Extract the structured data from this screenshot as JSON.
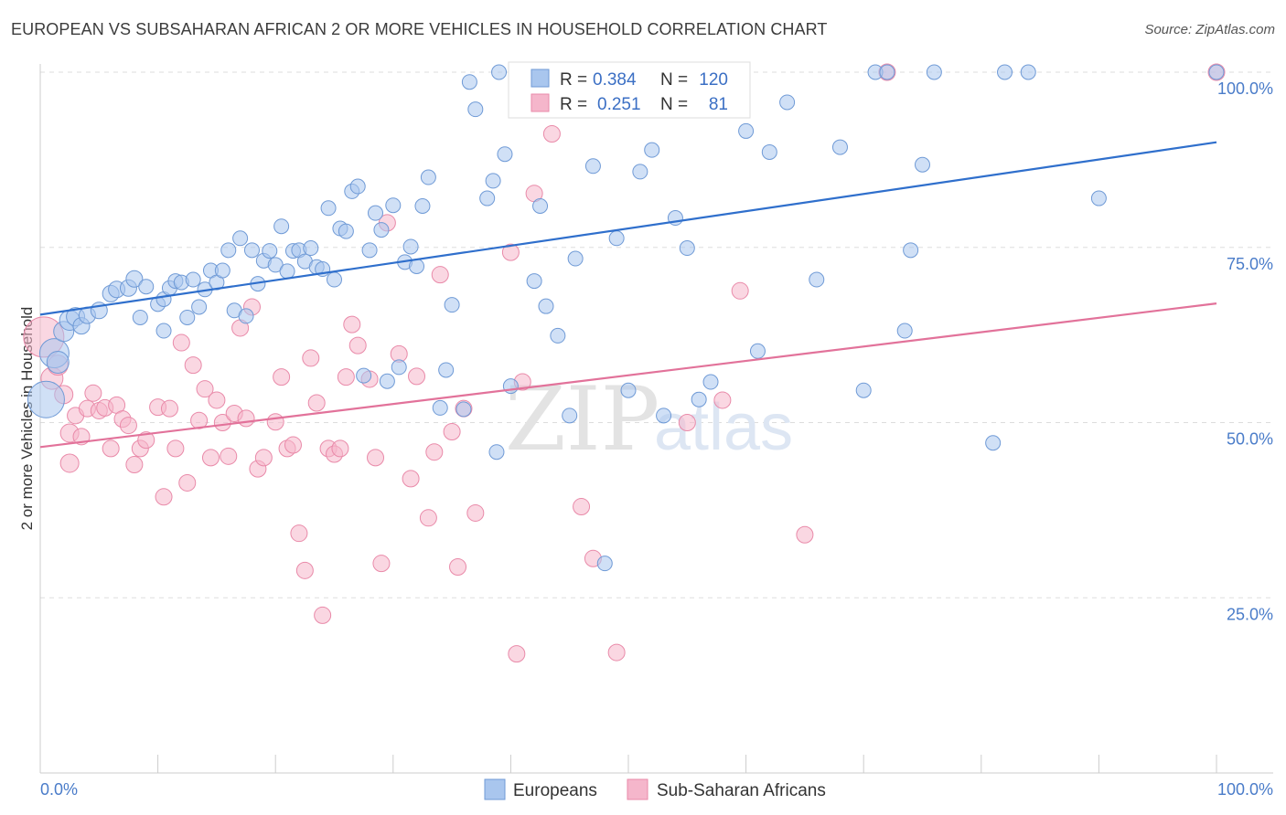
{
  "header": {
    "title": "EUROPEAN VS SUBSAHARAN AFRICAN 2 OR MORE VEHICLES IN HOUSEHOLD CORRELATION CHART",
    "source": "Source: ZipAtlas.com"
  },
  "watermark": {
    "zip": "ZIP",
    "atlas": "atlas"
  },
  "colors": {
    "blue_fill": "#a9c6ee",
    "blue_stroke": "#6f9ad6",
    "blue_line": "#2f6fcc",
    "pink_fill": "#f5b6cb",
    "pink_stroke": "#e98aa9",
    "pink_line": "#e2729a",
    "grid": "#dddddd",
    "tick_text": "#4a7cc9"
  },
  "stats": {
    "r_label": "R =",
    "n_label": "N =",
    "europeans": {
      "r": "0.384",
      "n": "120"
    },
    "subsaharan": {
      "r": "0.251",
      "n": "81"
    }
  },
  "legend": {
    "europeans": "Europeans",
    "subsaharan": "Sub-Saharan Africans"
  },
  "chart_data": {
    "type": "scatter",
    "ylabel": "2 or more Vehicles in Household",
    "x_tick_labels": [
      "0.0%",
      "100.0%"
    ],
    "y_tick_labels": [
      "25.0%",
      "50.0%",
      "75.0%",
      "100.0%"
    ],
    "y_ticks": [
      25,
      50,
      75,
      100
    ],
    "xlim": [
      0,
      100
    ],
    "ylim": [
      0,
      100
    ],
    "grid": true,
    "legend_position": "bottom-center",
    "series": [
      {
        "name": "Europeans",
        "trend": {
          "x": [
            0,
            100
          ],
          "y": [
            65.4,
            90.0
          ]
        },
        "points": [
          [
            0.5,
            53.3,
            20
          ],
          [
            1.2,
            59.9,
            16
          ],
          [
            1.5,
            58.6,
            12
          ],
          [
            2.0,
            63.0,
            11
          ],
          [
            2.5,
            64.6,
            11
          ],
          [
            3.0,
            65.1,
            10
          ],
          [
            3.5,
            63.8,
            9
          ],
          [
            4.0,
            65.3,
            9
          ],
          [
            5.0,
            66.0,
            9
          ],
          [
            6.0,
            68.4,
            9
          ],
          [
            6.5,
            69.0,
            9
          ],
          [
            7.5,
            69.2,
            9
          ],
          [
            8.0,
            70.5,
            9
          ],
          [
            8.5,
            65.0,
            8
          ],
          [
            9.0,
            69.4,
            8
          ],
          [
            10.0,
            66.9,
            8
          ],
          [
            10.5,
            63.1,
            8
          ],
          [
            10.5,
            67.6,
            8
          ],
          [
            11.0,
            69.2,
            8
          ],
          [
            11.5,
            70.2,
            8
          ],
          [
            12.0,
            70.0,
            8
          ],
          [
            12.5,
            65.0,
            8
          ],
          [
            13.0,
            70.4,
            8
          ],
          [
            13.5,
            66.5,
            8
          ],
          [
            14.0,
            69.0,
            8
          ],
          [
            14.5,
            71.7,
            8
          ],
          [
            15.0,
            70.0,
            8
          ],
          [
            15.5,
            71.7,
            8
          ],
          [
            16.0,
            74.6,
            8
          ],
          [
            16.5,
            66.0,
            8
          ],
          [
            17.0,
            76.3,
            8
          ],
          [
            17.5,
            65.2,
            8
          ],
          [
            18.0,
            74.6,
            8
          ],
          [
            18.5,
            69.8,
            8
          ],
          [
            19.0,
            73.1,
            8
          ],
          [
            19.5,
            74.5,
            8
          ],
          [
            20.0,
            72.5,
            8
          ],
          [
            20.5,
            78.0,
            8
          ],
          [
            21.0,
            71.6,
            8
          ],
          [
            21.5,
            74.5,
            8
          ],
          [
            22.0,
            74.6,
            8
          ],
          [
            22.5,
            73.0,
            8
          ],
          [
            23.0,
            74.9,
            8
          ],
          [
            23.5,
            72.2,
            8
          ],
          [
            24.0,
            71.9,
            8
          ],
          [
            24.5,
            80.6,
            8
          ],
          [
            25.0,
            70.4,
            8
          ],
          [
            25.5,
            77.7,
            8
          ],
          [
            26.0,
            77.3,
            8
          ],
          [
            26.5,
            83.0,
            8
          ],
          [
            27.0,
            83.7,
            8
          ],
          [
            27.5,
            56.7,
            8
          ],
          [
            28.0,
            74.6,
            8
          ],
          [
            28.5,
            79.9,
            8
          ],
          [
            29.0,
            77.5,
            8
          ],
          [
            29.5,
            55.9,
            8
          ],
          [
            30.0,
            81.0,
            8
          ],
          [
            30.5,
            57.9,
            8
          ],
          [
            31.0,
            72.9,
            8
          ],
          [
            31.5,
            75.1,
            8
          ],
          [
            32.0,
            72.3,
            8
          ],
          [
            32.5,
            80.9,
            8
          ],
          [
            33.0,
            85.0,
            8
          ],
          [
            34.0,
            52.1,
            8
          ],
          [
            34.5,
            57.5,
            8
          ],
          [
            35.0,
            66.8,
            8
          ],
          [
            36.0,
            51.9,
            8
          ],
          [
            36.5,
            98.6,
            8
          ],
          [
            37.0,
            94.7,
            8
          ],
          [
            38.0,
            82.0,
            8
          ],
          [
            38.5,
            84.5,
            8
          ],
          [
            38.8,
            45.8,
            8
          ],
          [
            39.0,
            100.0,
            8
          ],
          [
            39.5,
            88.3,
            8
          ],
          [
            40.0,
            55.2,
            8
          ],
          [
            41.0,
            100.0,
            8
          ],
          [
            42.0,
            70.2,
            8
          ],
          [
            42.5,
            80.9,
            8
          ],
          [
            43.0,
            66.6,
            8
          ],
          [
            44.0,
            62.4,
            8
          ],
          [
            45.0,
            51.0,
            8
          ],
          [
            45.5,
            73.4,
            8
          ],
          [
            47.0,
            86.6,
            8
          ],
          [
            48.0,
            29.9,
            8
          ],
          [
            49.0,
            76.3,
            8
          ],
          [
            50.0,
            54.6,
            8
          ],
          [
            51.0,
            85.8,
            8
          ],
          [
            52.0,
            88.9,
            8
          ],
          [
            53.0,
            51.0,
            8
          ],
          [
            54.0,
            79.2,
            8
          ],
          [
            55.0,
            74.9,
            8
          ],
          [
            56.0,
            53.3,
            8
          ],
          [
            57.0,
            55.8,
            8
          ],
          [
            60.0,
            91.6,
            8
          ],
          [
            61.0,
            60.2,
            8
          ],
          [
            62.0,
            88.6,
            8
          ],
          [
            63.5,
            95.7,
            8
          ],
          [
            66.0,
            70.4,
            8
          ],
          [
            68.0,
            89.3,
            8
          ],
          [
            70.0,
            54.6,
            8
          ],
          [
            71.0,
            100.0,
            8
          ],
          [
            72.0,
            100.0,
            8
          ],
          [
            73.5,
            63.1,
            8
          ],
          [
            74.0,
            74.6,
            8
          ],
          [
            75.0,
            86.8,
            8
          ],
          [
            76.0,
            100.0,
            8
          ],
          [
            81.0,
            47.1,
            8
          ],
          [
            82.0,
            100.0,
            8
          ],
          [
            84.0,
            100.0,
            8
          ],
          [
            90.0,
            82.0,
            8
          ],
          [
            100.0,
            100.0,
            8
          ]
        ]
      },
      {
        "name": "Sub-Saharan Africans",
        "trend": {
          "x": [
            0,
            100
          ],
          "y": [
            46.5,
            67.0
          ]
        },
        "points": [
          [
            0.3,
            62.2,
            22
          ],
          [
            1.0,
            56.3,
            12
          ],
          [
            1.5,
            58.2,
            11
          ],
          [
            2.0,
            54.0,
            10
          ],
          [
            2.5,
            48.5,
            10
          ],
          [
            2.5,
            44.2,
            10
          ],
          [
            3.0,
            51.0,
            9
          ],
          [
            3.5,
            48.0,
            9
          ],
          [
            4.0,
            52.0,
            9
          ],
          [
            4.5,
            54.2,
            9
          ],
          [
            5.0,
            51.7,
            9
          ],
          [
            5.5,
            52.1,
            9
          ],
          [
            6.0,
            46.3,
            9
          ],
          [
            6.5,
            52.5,
            9
          ],
          [
            7.0,
            50.5,
            9
          ],
          [
            7.5,
            49.6,
            9
          ],
          [
            8.0,
            44.0,
            9
          ],
          [
            8.5,
            46.3,
            9
          ],
          [
            9.0,
            47.5,
            9
          ],
          [
            10.0,
            52.2,
            9
          ],
          [
            10.5,
            39.4,
            9
          ],
          [
            11.0,
            52.0,
            9
          ],
          [
            11.5,
            46.3,
            9
          ],
          [
            12.0,
            61.4,
            9
          ],
          [
            12.5,
            41.4,
            9
          ],
          [
            13.0,
            58.2,
            9
          ],
          [
            13.5,
            50.3,
            9
          ],
          [
            14.0,
            54.8,
            9
          ],
          [
            14.5,
            45.0,
            9
          ],
          [
            15.0,
            53.2,
            9
          ],
          [
            15.5,
            50.0,
            9
          ],
          [
            16.0,
            45.2,
            9
          ],
          [
            16.5,
            51.3,
            9
          ],
          [
            17.0,
            63.5,
            9
          ],
          [
            17.5,
            50.6,
            9
          ],
          [
            18.0,
            66.5,
            9
          ],
          [
            18.5,
            43.4,
            9
          ],
          [
            19.0,
            45.0,
            9
          ],
          [
            20.0,
            50.1,
            9
          ],
          [
            20.5,
            56.5,
            9
          ],
          [
            21.0,
            46.3,
            9
          ],
          [
            21.5,
            46.8,
            9
          ],
          [
            22.0,
            34.2,
            9
          ],
          [
            22.5,
            28.9,
            9
          ],
          [
            23.0,
            59.2,
            9
          ],
          [
            23.5,
            52.8,
            9
          ],
          [
            24.0,
            22.5,
            9
          ],
          [
            24.5,
            46.3,
            9
          ],
          [
            25.0,
            45.5,
            9
          ],
          [
            25.5,
            46.3,
            9
          ],
          [
            26.0,
            56.5,
            9
          ],
          [
            26.5,
            64.0,
            9
          ],
          [
            27.0,
            61.0,
            9
          ],
          [
            28.0,
            56.2,
            9
          ],
          [
            28.5,
            45.0,
            9
          ],
          [
            29.0,
            29.9,
            9
          ],
          [
            29.5,
            78.5,
            9
          ],
          [
            30.5,
            59.8,
            9
          ],
          [
            31.5,
            42.0,
            9
          ],
          [
            32.0,
            56.6,
            9
          ],
          [
            33.0,
            36.4,
            9
          ],
          [
            33.5,
            45.8,
            9
          ],
          [
            34.0,
            71.1,
            9
          ],
          [
            35.0,
            48.7,
            9
          ],
          [
            35.5,
            29.4,
            9
          ],
          [
            36.0,
            52.0,
            9
          ],
          [
            37.0,
            37.1,
            9
          ],
          [
            40.0,
            74.3,
            9
          ],
          [
            40.5,
            17.0,
            9
          ],
          [
            41.0,
            55.8,
            9
          ],
          [
            42.0,
            82.7,
            9
          ],
          [
            43.5,
            91.2,
            9
          ],
          [
            46.0,
            38.0,
            9
          ],
          [
            47.0,
            30.6,
            9
          ],
          [
            49.0,
            17.2,
            9
          ],
          [
            55.0,
            50.0,
            9
          ],
          [
            58.0,
            53.2,
            9
          ],
          [
            59.5,
            68.8,
            9
          ],
          [
            65.0,
            34.0,
            9
          ],
          [
            72.0,
            100.0,
            9
          ],
          [
            100.0,
            100.0,
            9
          ]
        ]
      }
    ]
  }
}
